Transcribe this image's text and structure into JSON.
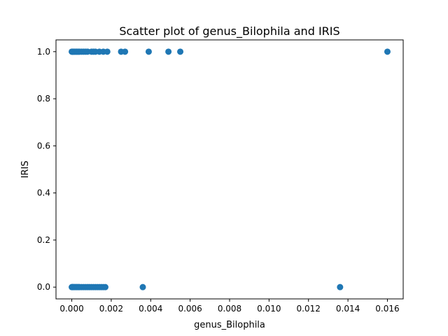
{
  "chart_data": {
    "type": "scatter",
    "title": "Scatter plot of genus_Bilophila and IRIS",
    "xlabel": "genus_Bilophila",
    "ylabel": "IRIS",
    "xlim": [
      -0.0008,
      0.0168
    ],
    "ylim": [
      -0.05,
      1.05
    ],
    "xticks": [
      0.0,
      0.002,
      0.004,
      0.006,
      0.008,
      0.01,
      0.012,
      0.014,
      0.016
    ],
    "xtick_labels": [
      "0.000",
      "0.002",
      "0.004",
      "0.006",
      "0.008",
      "0.010",
      "0.012",
      "0.014",
      "0.016"
    ],
    "yticks": [
      0.0,
      0.2,
      0.4,
      0.6,
      0.8,
      1.0
    ],
    "ytick_labels": [
      "0.0",
      "0.2",
      "0.4",
      "0.6",
      "0.8",
      "1.0"
    ],
    "grid": false,
    "marker_color": "#1f77b4",
    "series": [
      {
        "x": [
          0.0,
          3e-05,
          6e-05,
          0.0001,
          0.00015,
          0.0002,
          0.00025,
          0.0003,
          0.00035,
          0.0004,
          0.0005,
          0.0006,
          0.0007,
          0.0008,
          0.001,
          0.0011,
          0.0012,
          0.0014,
          0.0016,
          0.0018,
          0.0025,
          0.0027,
          0.0039,
          0.0049,
          0.0055,
          0.016
        ],
        "y": [
          1,
          1,
          1,
          1,
          1,
          1,
          1,
          1,
          1,
          1,
          1,
          1,
          1,
          1,
          1,
          1,
          1,
          1,
          1,
          1,
          1,
          1,
          1,
          1,
          1,
          1
        ]
      },
      {
        "x": [
          0.0,
          3e-05,
          6e-05,
          0.0001,
          0.00015,
          0.0002,
          0.00025,
          0.0003,
          0.00035,
          0.0004,
          0.0005,
          0.0006,
          0.0007,
          0.0008,
          0.0009,
          0.001,
          0.0011,
          0.0012,
          0.0013,
          0.0014,
          0.0015,
          0.0016,
          0.0017,
          0.0036,
          0.0136
        ],
        "y": [
          0,
          0,
          0,
          0,
          0,
          0,
          0,
          0,
          0,
          0,
          0,
          0,
          0,
          0,
          0,
          0,
          0,
          0,
          0,
          0,
          0,
          0,
          0,
          0,
          0
        ]
      }
    ]
  }
}
